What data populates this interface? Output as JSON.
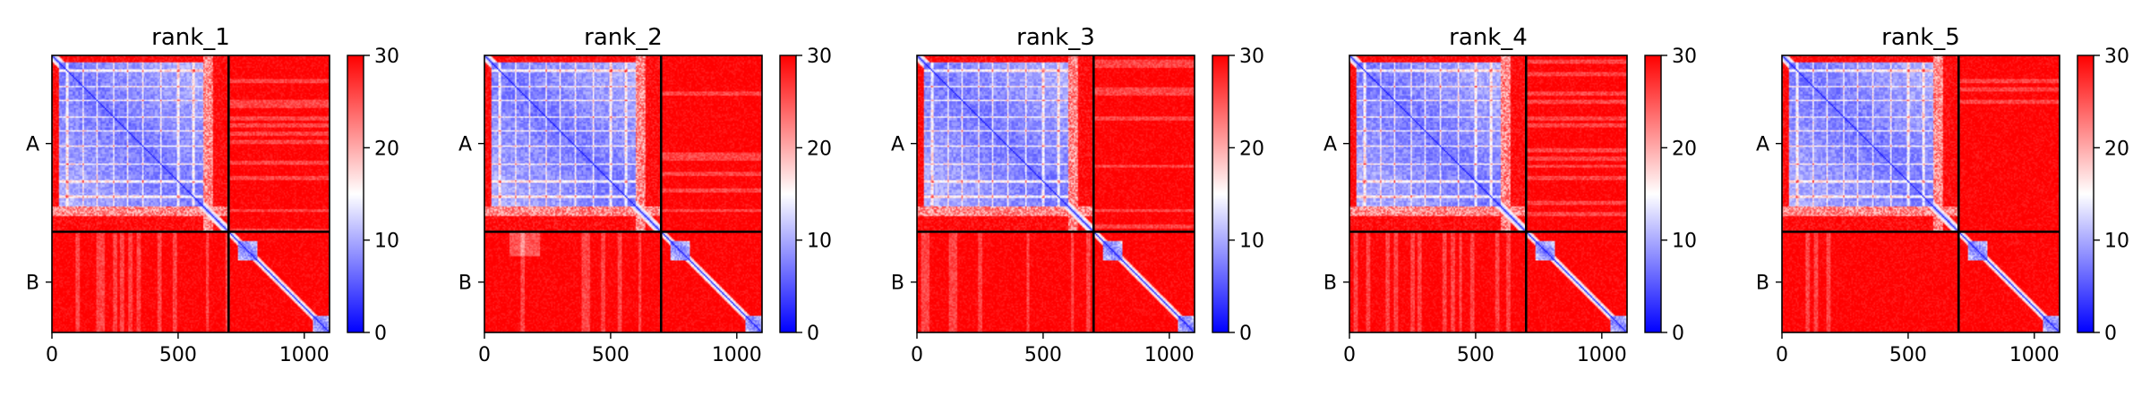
{
  "chart_data": [
    {
      "type": "heatmap",
      "title": "rank_1",
      "variant": 0,
      "n_residues": 1100,
      "chain_break": 700,
      "chains": [
        "A",
        "B"
      ],
      "xticks": [
        0,
        500,
        1000
      ],
      "xlim": [
        0,
        1100
      ],
      "colorbar": {
        "min": 0,
        "max": 30,
        "ticks": [
          0,
          10,
          20,
          30
        ],
        "colors": [
          "#0000ff",
          "#ffffff",
          "#ff0000"
        ]
      }
    },
    {
      "type": "heatmap",
      "title": "rank_2",
      "variant": 1,
      "n_residues": 1100,
      "chain_break": 700,
      "chains": [
        "A",
        "B"
      ],
      "xticks": [
        0,
        500,
        1000
      ],
      "xlim": [
        0,
        1100
      ],
      "colorbar": {
        "min": 0,
        "max": 30,
        "ticks": [
          0,
          10,
          20,
          30
        ],
        "colors": [
          "#0000ff",
          "#ffffff",
          "#ff0000"
        ]
      }
    },
    {
      "type": "heatmap",
      "title": "rank_3",
      "variant": 2,
      "n_residues": 1100,
      "chain_break": 700,
      "chains": [
        "A",
        "B"
      ],
      "xticks": [
        0,
        500,
        1000
      ],
      "xlim": [
        0,
        1100
      ],
      "colorbar": {
        "min": 0,
        "max": 30,
        "ticks": [
          0,
          10,
          20,
          30
        ],
        "colors": [
          "#0000ff",
          "#ffffff",
          "#ff0000"
        ]
      }
    },
    {
      "type": "heatmap",
      "title": "rank_4",
      "variant": 3,
      "n_residues": 1100,
      "chain_break": 700,
      "chains": [
        "A",
        "B"
      ],
      "xticks": [
        0,
        500,
        1000
      ],
      "xlim": [
        0,
        1100
      ],
      "colorbar": {
        "min": 0,
        "max": 30,
        "ticks": [
          0,
          10,
          20,
          30
        ],
        "colors": [
          "#0000ff",
          "#ffffff",
          "#ff0000"
        ]
      }
    },
    {
      "type": "heatmap",
      "title": "rank_5",
      "variant": 4,
      "n_residues": 1100,
      "chain_break": 700,
      "chains": [
        "A",
        "B"
      ],
      "xticks": [
        0,
        500,
        1000
      ],
      "xlim": [
        0,
        1100
      ],
      "colorbar": {
        "min": 0,
        "max": 30,
        "ticks": [
          0,
          10,
          20,
          30
        ],
        "colors": [
          "#0000ff",
          "#ffffff",
          "#ff0000"
        ]
      }
    }
  ]
}
